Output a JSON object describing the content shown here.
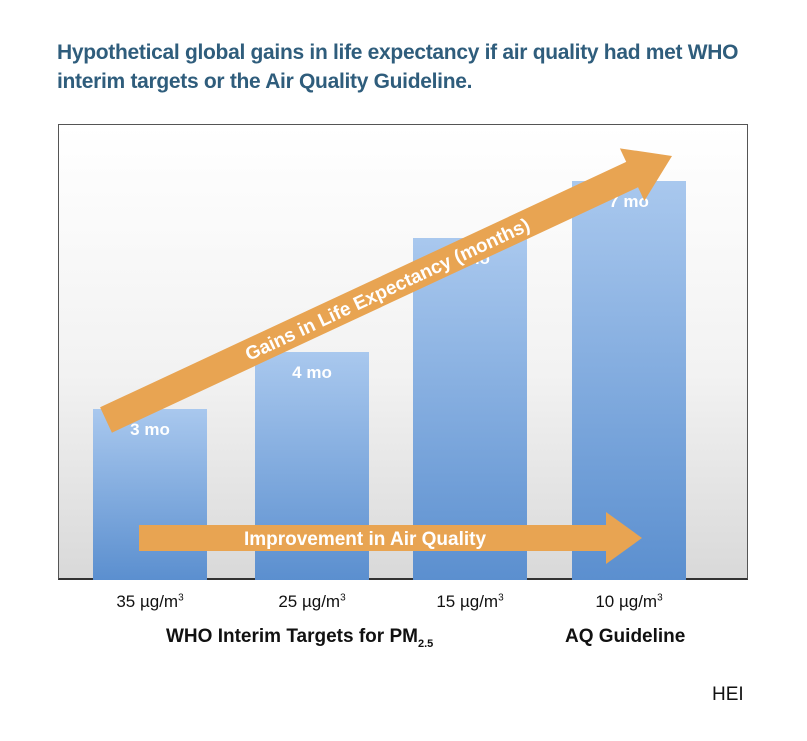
{
  "title": "Hypothetical global gains in life expectancy if air quality had met WHO interim targets or the Air Quality Guideline.",
  "chart_data": {
    "type": "bar",
    "categories": [
      "35 µg/m³",
      "25 µg/m³",
      "15 µg/m³",
      "10 µg/m³"
    ],
    "values": [
      3,
      4,
      6,
      7
    ],
    "data_labels": [
      "3 mo",
      "4 mo",
      "6 mo",
      "7 mo"
    ],
    "ylim": [
      0,
      8
    ],
    "unit": "mo",
    "grid": false,
    "colors": {
      "bar_top": "#a9c8ee",
      "bar_bottom": "#5b8fcf",
      "arrow": "#e8a452"
    },
    "annotations": {
      "diagonal_arrow": "Gains in Life Expectancy (months)",
      "horizontal_arrow": "Improvement in Air Quality"
    },
    "group_labels": {
      "interim_prefix": "WHO Interim Targets for PM",
      "interim_subscript": "2.5",
      "guideline": "AQ Guideline"
    }
  },
  "tick_labels": [
    {
      "value": "35 µg/m",
      "sup": "3"
    },
    {
      "value": "25 µg/m",
      "sup": "3"
    },
    {
      "value": "15 µg/m",
      "sup": "3"
    },
    {
      "value": "10 µg/m",
      "sup": "3"
    }
  ],
  "credit": "HEI"
}
